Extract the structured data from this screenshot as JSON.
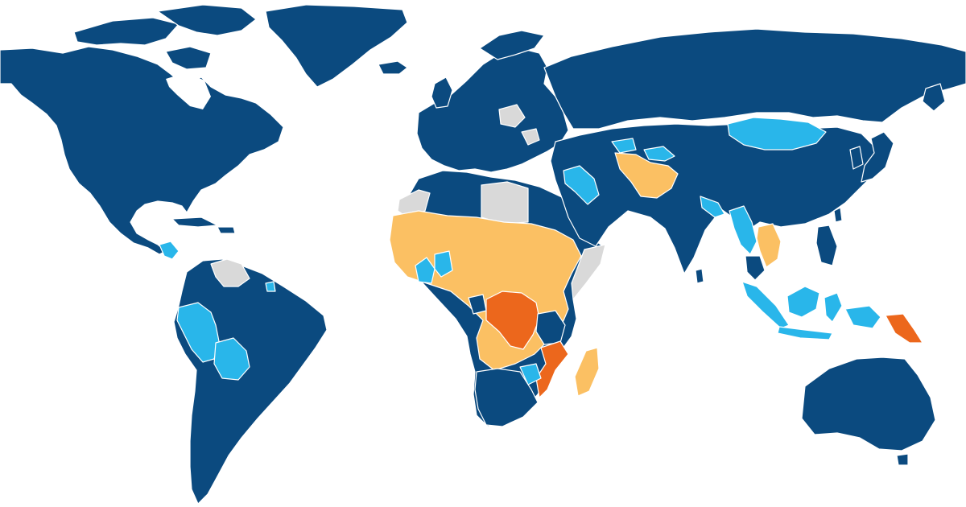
{
  "map": {
    "colors": {
      "ocean": "#ffffff",
      "border": "#ffffff",
      "dark_blue": "#0b4a7f",
      "light_blue": "#29b6ea",
      "light_orange": "#fbc063",
      "dark_orange": "#ec671c",
      "no_data": "#d9d9d9"
    }
  }
}
